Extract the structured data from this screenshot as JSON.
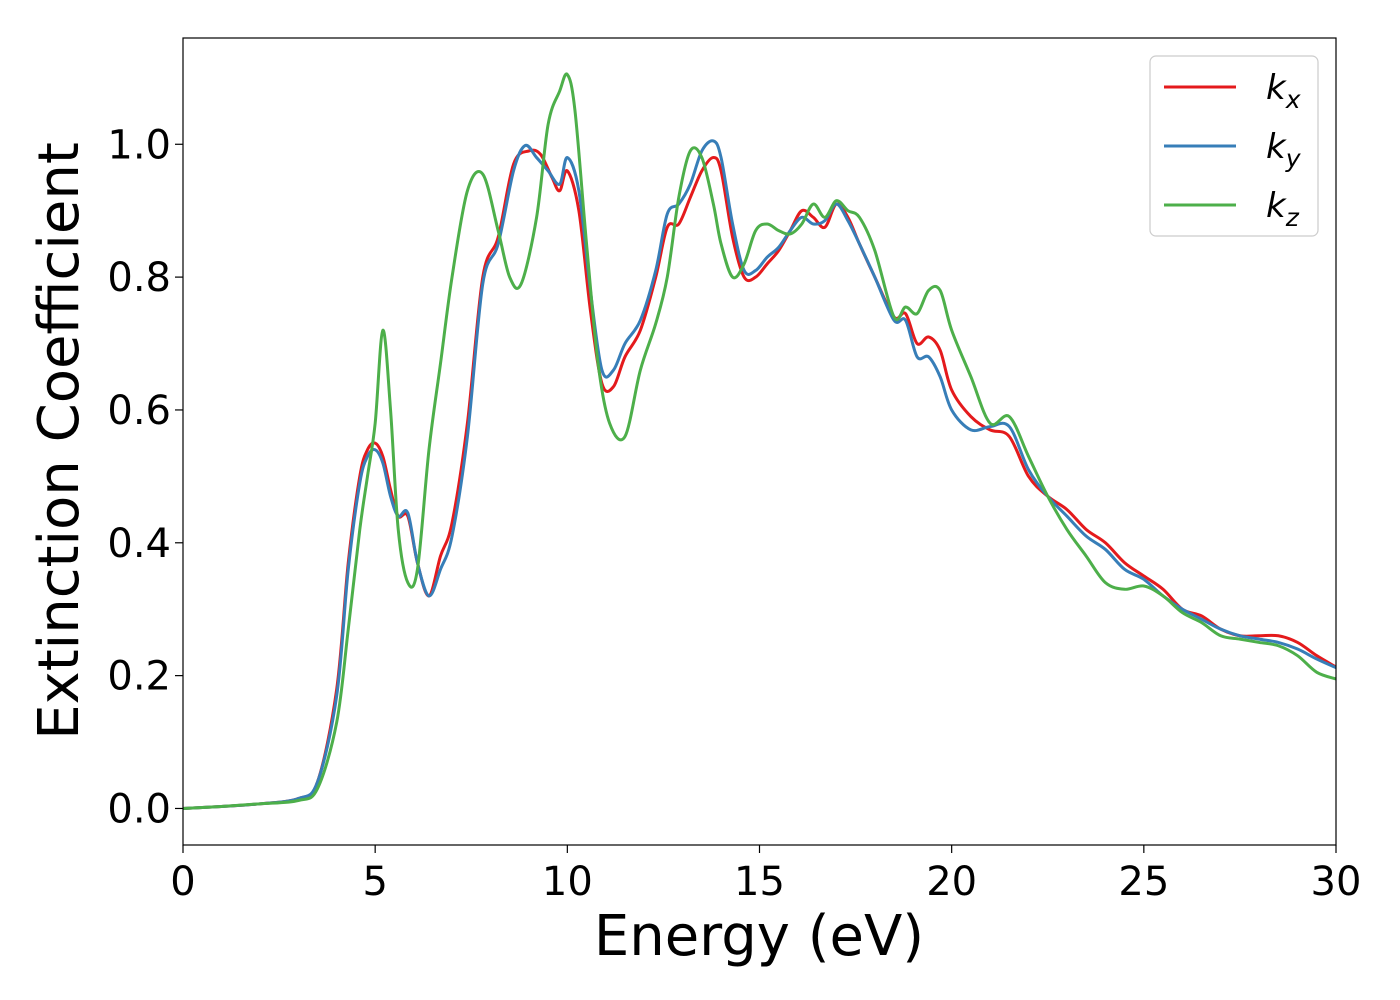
{
  "chart_data": {
    "type": "line",
    "title": "",
    "xlabel": "Energy (eV)",
    "ylabel": "Extinction Coefficient",
    "xlim": [
      0,
      30
    ],
    "ylim": [
      -0.055,
      1.16
    ],
    "xticks": [
      0,
      5,
      10,
      15,
      20,
      25,
      30
    ],
    "yticks": [
      0.0,
      0.2,
      0.4,
      0.6,
      0.8,
      1.0
    ],
    "grid": false,
    "legend_position": "top-right",
    "series": [
      {
        "name": "k_x",
        "legend_base": "k",
        "legend_sub": "x",
        "color": "#e41a1c",
        "x": [
          0,
          1,
          2,
          3,
          3.5,
          4,
          4.3,
          4.6,
          4.8,
          5,
          5.2,
          5.4,
          5.6,
          5.85,
          6.1,
          6.4,
          6.7,
          7.0,
          7.4,
          7.8,
          8.2,
          8.6,
          9.0,
          9.3,
          9.6,
          9.8,
          10.0,
          10.3,
          10.6,
          10.9,
          11.2,
          11.5,
          11.9,
          12.3,
          12.6,
          12.9,
          13.2,
          13.5,
          13.8,
          14.0,
          14.3,
          14.6,
          14.9,
          15.2,
          15.5,
          15.8,
          16.1,
          16.4,
          16.7,
          17.0,
          17.3,
          17.6,
          18.0,
          18.5,
          18.8,
          19.1,
          19.4,
          19.7,
          20.0,
          20.5,
          21.0,
          21.5,
          22.0,
          22.5,
          23.0,
          23.5,
          24.0,
          24.5,
          25.0,
          25.5,
          26.0,
          26.5,
          27.0,
          27.5,
          28.0,
          28.5,
          29.0,
          29.5,
          30.0
        ],
        "y": [
          0.0,
          0.003,
          0.007,
          0.015,
          0.04,
          0.18,
          0.37,
          0.5,
          0.54,
          0.55,
          0.53,
          0.48,
          0.44,
          0.44,
          0.37,
          0.32,
          0.38,
          0.43,
          0.58,
          0.8,
          0.86,
          0.97,
          0.99,
          0.985,
          0.95,
          0.93,
          0.96,
          0.9,
          0.75,
          0.64,
          0.635,
          0.68,
          0.72,
          0.8,
          0.875,
          0.88,
          0.92,
          0.96,
          0.98,
          0.96,
          0.86,
          0.8,
          0.8,
          0.82,
          0.84,
          0.87,
          0.9,
          0.89,
          0.875,
          0.91,
          0.89,
          0.85,
          0.8,
          0.74,
          0.745,
          0.7,
          0.71,
          0.69,
          0.63,
          0.59,
          0.57,
          0.56,
          0.5,
          0.47,
          0.45,
          0.42,
          0.4,
          0.37,
          0.35,
          0.33,
          0.3,
          0.29,
          0.27,
          0.26,
          0.26,
          0.26,
          0.25,
          0.23,
          0.213
        ]
      },
      {
        "name": "k_y",
        "legend_base": "k",
        "legend_sub": "y",
        "color": "#377eb8",
        "x": [
          0,
          1,
          2,
          3,
          3.5,
          4,
          4.3,
          4.6,
          4.8,
          5,
          5.2,
          5.4,
          5.6,
          5.85,
          6.1,
          6.4,
          6.7,
          7.0,
          7.4,
          7.8,
          8.2,
          8.6,
          8.9,
          9.2,
          9.5,
          9.8,
          10.0,
          10.3,
          10.6,
          10.9,
          11.2,
          11.5,
          11.9,
          12.3,
          12.6,
          12.9,
          13.2,
          13.5,
          13.8,
          14.0,
          14.3,
          14.6,
          14.9,
          15.2,
          15.5,
          15.8,
          16.1,
          16.4,
          16.7,
          17.0,
          17.3,
          17.6,
          18.0,
          18.5,
          18.8,
          19.1,
          19.4,
          19.7,
          20.0,
          20.5,
          21.0,
          21.5,
          22.0,
          22.5,
          23.0,
          23.5,
          24.0,
          24.5,
          25.0,
          25.5,
          26.0,
          26.5,
          27.0,
          27.5,
          28.0,
          28.5,
          29.0,
          29.5,
          30.0
        ],
        "y": [
          0.0,
          0.003,
          0.007,
          0.015,
          0.04,
          0.17,
          0.36,
          0.49,
          0.53,
          0.54,
          0.52,
          0.47,
          0.44,
          0.445,
          0.37,
          0.32,
          0.36,
          0.41,
          0.56,
          0.79,
          0.85,
          0.96,
          0.998,
          0.98,
          0.96,
          0.94,
          0.98,
          0.93,
          0.78,
          0.66,
          0.66,
          0.7,
          0.735,
          0.81,
          0.895,
          0.91,
          0.94,
          0.99,
          1.005,
          0.98,
          0.88,
          0.81,
          0.81,
          0.83,
          0.845,
          0.87,
          0.89,
          0.88,
          0.885,
          0.91,
          0.885,
          0.85,
          0.8,
          0.735,
          0.735,
          0.68,
          0.68,
          0.65,
          0.6,
          0.57,
          0.575,
          0.575,
          0.51,
          0.47,
          0.44,
          0.41,
          0.39,
          0.36,
          0.345,
          0.32,
          0.3,
          0.285,
          0.27,
          0.26,
          0.255,
          0.25,
          0.24,
          0.225,
          0.212
        ]
      },
      {
        "name": "k_z",
        "legend_base": "k",
        "legend_sub": "z",
        "color": "#4daf4a",
        "x": [
          0,
          1,
          2,
          3,
          3.5,
          4,
          4.3,
          4.6,
          4.8,
          5.0,
          5.2,
          5.4,
          5.6,
          5.85,
          6.1,
          6.4,
          6.7,
          7.0,
          7.4,
          7.8,
          8.2,
          8.5,
          8.8,
          9.2,
          9.5,
          9.8,
          10.0,
          10.2,
          10.5,
          10.8,
          11.1,
          11.5,
          11.9,
          12.3,
          12.6,
          12.9,
          13.2,
          13.5,
          13.8,
          14.0,
          14.3,
          14.6,
          14.9,
          15.2,
          15.5,
          15.8,
          16.1,
          16.4,
          16.7,
          17.0,
          17.3,
          17.6,
          18.0,
          18.5,
          18.8,
          19.1,
          19.4,
          19.7,
          20.0,
          20.5,
          21.0,
          21.5,
          22.0,
          22.5,
          23.0,
          23.5,
          24.0,
          24.5,
          25.0,
          25.5,
          26.0,
          26.5,
          27.0,
          27.5,
          28.0,
          28.5,
          29.0,
          29.5,
          30.0
        ],
        "y": [
          0.0,
          0.003,
          0.007,
          0.012,
          0.03,
          0.13,
          0.27,
          0.42,
          0.5,
          0.58,
          0.72,
          0.6,
          0.42,
          0.34,
          0.36,
          0.54,
          0.67,
          0.8,
          0.93,
          0.955,
          0.87,
          0.8,
          0.79,
          0.89,
          1.03,
          1.08,
          1.105,
          1.05,
          0.85,
          0.67,
          0.58,
          0.56,
          0.66,
          0.73,
          0.8,
          0.92,
          0.99,
          0.98,
          0.91,
          0.85,
          0.8,
          0.82,
          0.87,
          0.88,
          0.87,
          0.865,
          0.88,
          0.91,
          0.89,
          0.915,
          0.9,
          0.89,
          0.84,
          0.74,
          0.755,
          0.745,
          0.78,
          0.78,
          0.72,
          0.65,
          0.58,
          0.59,
          0.53,
          0.47,
          0.42,
          0.38,
          0.34,
          0.33,
          0.335,
          0.32,
          0.295,
          0.28,
          0.26,
          0.255,
          0.25,
          0.245,
          0.23,
          0.205,
          0.195
        ]
      }
    ]
  }
}
